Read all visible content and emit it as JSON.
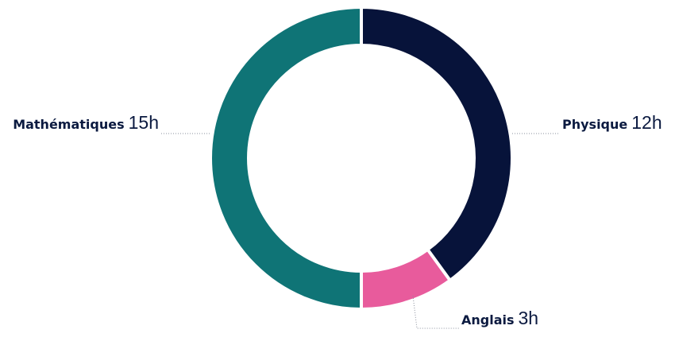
{
  "chart_data": {
    "type": "donut",
    "categories": [
      "Physique",
      "Anglais",
      "Mathématiques"
    ],
    "values": [
      12,
      3,
      15
    ],
    "value_labels": [
      "12h",
      "3h",
      "15h"
    ],
    "colors": [
      "#07133a",
      "#e85b9c",
      "#0f7476"
    ]
  }
}
